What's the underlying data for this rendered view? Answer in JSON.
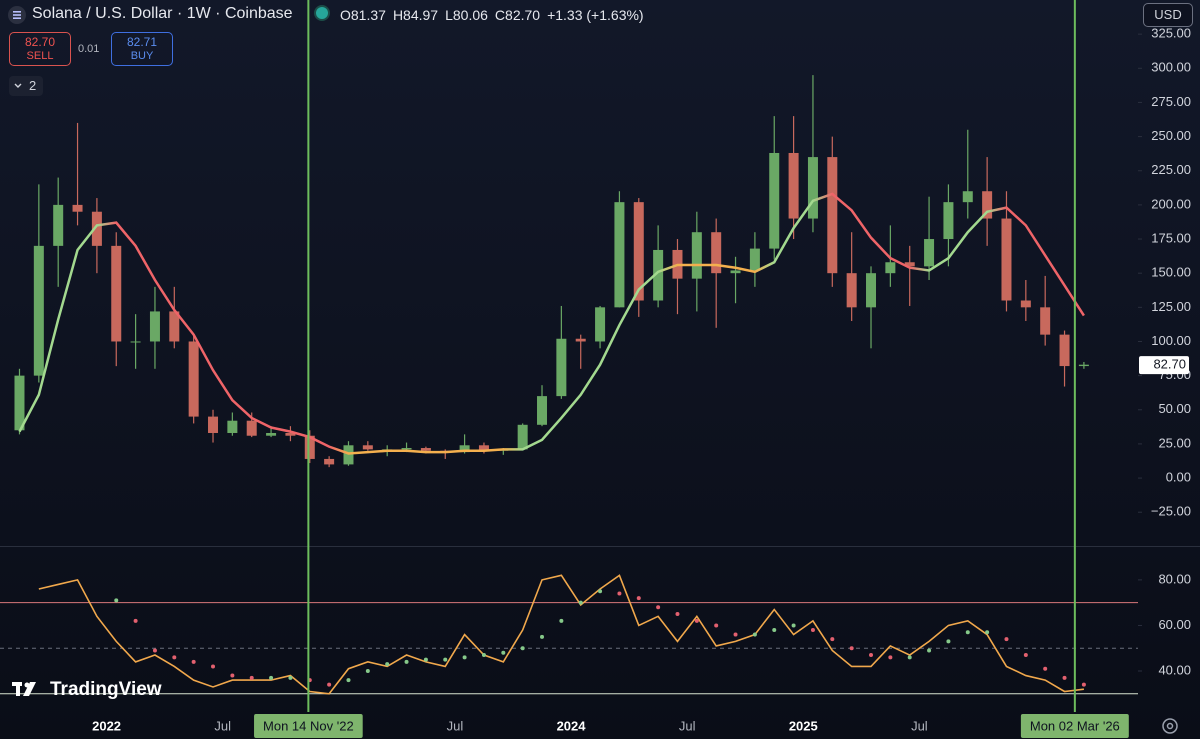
{
  "header": {
    "symbol": "Solana / U.S. Dollar · 1W · Coinbase",
    "ohlc": [
      "O81.37",
      "H84.97",
      "L80.06",
      "C82.70"
    ],
    "change": "+1.33 (+1.63%)",
    "sell": {
      "price": "82.70",
      "label": "SELL"
    },
    "spread": "0.01",
    "buy": {
      "price": "82.71",
      "label": "BUY"
    },
    "indicators": "2",
    "currency": "USD",
    "logo": "TradingView"
  },
  "chart_data": [
    {
      "type": "candlestick",
      "up_color": "#6aa865",
      "down_color": "#c8695d",
      "grid": false,
      "xlim": [
        "2021-07-16",
        "2026-06-10"
      ],
      "ylim": [
        -49,
        350
      ],
      "x": [
        "2021-08",
        "2021-09",
        "2021-10",
        "2021-11",
        "2021-12",
        "2022-01",
        "2022-02",
        "2022-03",
        "2022-04",
        "2022-05",
        "2022-06",
        "2022-07",
        "2022-08",
        "2022-09",
        "2022-10",
        "2022-11",
        "2022-12",
        "2023-01",
        "2023-02",
        "2023-03",
        "2023-04",
        "2023-05",
        "2023-06",
        "2023-07",
        "2023-08",
        "2023-09",
        "2023-10",
        "2023-11",
        "2023-12",
        "2024-01",
        "2024-02",
        "2024-03",
        "2024-04",
        "2024-05",
        "2024-06",
        "2024-07",
        "2024-08",
        "2024-09",
        "2024-10",
        "2024-11",
        "2024-12",
        "2025-01",
        "2025-02",
        "2025-03",
        "2025-04",
        "2025-05",
        "2025-06",
        "2025-07",
        "2025-08",
        "2025-09",
        "2025-10",
        "2025-11",
        "2025-12",
        "2026-01",
        "2026-02",
        "2026-03"
      ],
      "open": [
        35,
        75,
        170,
        200,
        195,
        170,
        100,
        100,
        122,
        100,
        45,
        33,
        42,
        31,
        33,
        31,
        14,
        10,
        24,
        21,
        21,
        22,
        20,
        19,
        24,
        20,
        21,
        39,
        60,
        102,
        100,
        125,
        202,
        130,
        167,
        146,
        180,
        150,
        152,
        168,
        238,
        190,
        235,
        150,
        125,
        150,
        158,
        155,
        175,
        202,
        210,
        190,
        130,
        125,
        105,
        82
      ],
      "high": [
        80,
        215,
        220,
        260,
        205,
        180,
        120,
        140,
        140,
        105,
        50,
        48,
        48,
        38,
        38,
        35,
        16,
        27,
        27,
        24,
        26,
        23,
        21,
        32,
        26,
        22,
        40,
        68,
        126,
        105,
        126,
        210,
        205,
        185,
        175,
        195,
        190,
        162,
        180,
        265,
        265,
        295,
        250,
        180,
        155,
        185,
        170,
        206,
        215,
        255,
        235,
        210,
        145,
        148,
        108,
        85
      ],
      "low": [
        32,
        70,
        140,
        185,
        150,
        82,
        80,
        80,
        95,
        40,
        26,
        31,
        30,
        30,
        27,
        11,
        8,
        9,
        20,
        16,
        19,
        18,
        14,
        18,
        18,
        17,
        21,
        38,
        58,
        80,
        95,
        125,
        118,
        125,
        120,
        122,
        110,
        128,
        140,
        160,
        175,
        180,
        140,
        115,
        95,
        140,
        126,
        145,
        155,
        190,
        170,
        122,
        115,
        97,
        67,
        80
      ],
      "close": [
        75,
        170,
        200,
        195,
        170,
        100,
        100,
        122,
        100,
        45,
        33,
        42,
        31,
        33,
        31,
        14,
        10,
        24,
        21,
        21,
        22,
        20,
        19,
        24,
        20,
        21,
        39,
        60,
        102,
        100,
        125,
        202,
        130,
        167,
        146,
        180,
        150,
        152,
        168,
        238,
        190,
        235,
        150,
        125,
        150,
        158,
        155,
        175,
        202,
        210,
        190,
        130,
        125,
        105,
        82,
        83
      ],
      "ma": {
        "color_up": "#a3d98f",
        "color_flat": "#f4b04e",
        "color_down": "#ef6468",
        "values": [
          34,
          61,
          116,
          167,
          185,
          187,
          170,
          145,
          123,
          105,
          79,
          57,
          44,
          37,
          34,
          30,
          23,
          18,
          19,
          20,
          20,
          19,
          19,
          20,
          20,
          21,
          21,
          28,
          44,
          61,
          83,
          112,
          138,
          151,
          156,
          156,
          156,
          154,
          151,
          158,
          183,
          203,
          208,
          196,
          176,
          161,
          154,
          152,
          161,
          180,
          195,
          198,
          185,
          163,
          141,
          119
        ]
      },
      "yticks": [
        {
          "value": 325,
          "label": "325.00"
        },
        {
          "value": 300,
          "label": "300.00"
        },
        {
          "value": 275,
          "label": "275.00"
        },
        {
          "value": 250,
          "label": "250.00"
        },
        {
          "value": 225,
          "label": "225.00"
        },
        {
          "value": 200,
          "label": "200.00"
        },
        {
          "value": 175,
          "label": "175.00"
        },
        {
          "value": 150,
          "label": "150.00"
        },
        {
          "value": 125,
          "label": "125.00"
        },
        {
          "value": 100,
          "label": "100.00"
        },
        {
          "value": 75,
          "label": "75.00"
        },
        {
          "value": 50,
          "label": "50.00"
        },
        {
          "value": 25,
          "label": "25.00"
        },
        {
          "value": 0,
          "label": "0.00"
        },
        {
          "value": -25,
          "label": "−25.00"
        }
      ],
      "last_price": {
        "value": 82.7,
        "label": "82.70"
      },
      "xticks": [
        {
          "value": "2022-01-01",
          "label": "2022"
        },
        {
          "value": "2022-07-01",
          "label": "Jul"
        },
        {
          "value": "2023-07-01",
          "label": "Jul"
        },
        {
          "value": "2024-01-01",
          "label": "2024"
        },
        {
          "value": "2024-07-01",
          "label": "Jul"
        },
        {
          "value": "2025-01-01",
          "label": "2025"
        },
        {
          "value": "2025-07-01",
          "label": "Jul"
        }
      ],
      "crosshairs": [
        {
          "value": "2022-11-14",
          "label": "Mon 14 Nov '22"
        },
        {
          "value": "2026-03-02",
          "label": "Mon 02 Mar '26"
        }
      ]
    },
    {
      "type": "line",
      "ylim": [
        22,
        94
      ],
      "x": [
        "2021-08",
        "2021-09",
        "2021-10",
        "2021-11",
        "2021-12",
        "2022-01",
        "2022-02",
        "2022-03",
        "2022-04",
        "2022-05",
        "2022-06",
        "2022-07",
        "2022-08",
        "2022-09",
        "2022-10",
        "2022-11",
        "2022-12",
        "2023-01",
        "2023-02",
        "2023-03",
        "2023-04",
        "2023-05",
        "2023-06",
        "2023-07",
        "2023-08",
        "2023-09",
        "2023-10",
        "2023-11",
        "2023-12",
        "2024-01",
        "2024-02",
        "2024-03",
        "2024-04",
        "2024-05",
        "2024-06",
        "2024-07",
        "2024-08",
        "2024-09",
        "2024-10",
        "2024-11",
        "2024-12",
        "2025-01",
        "2025-02",
        "2025-03",
        "2025-04",
        "2025-05",
        "2025-06",
        "2025-07",
        "2025-08",
        "2025-09",
        "2025-10",
        "2025-11",
        "2025-12",
        "2026-01",
        "2026-02",
        "2026-03"
      ],
      "series": [
        {
          "style": "line",
          "color": "#f1a84c",
          "values": [
            null,
            76,
            78,
            80,
            64,
            53,
            44,
            47,
            42,
            36,
            33,
            36,
            36,
            36,
            38,
            31,
            30,
            41,
            44,
            42,
            47,
            44,
            42,
            56,
            47,
            44,
            58,
            80,
            82,
            69,
            76,
            82,
            60,
            64,
            53,
            64,
            51,
            53,
            56,
            67,
            56,
            62,
            49,
            42,
            42,
            51,
            47,
            53,
            60,
            62,
            56,
            42,
            38,
            36,
            31,
            32
          ]
        },
        {
          "style": "dots",
          "color_up": "#86c98a",
          "color_down": "#e3606f",
          "values": [
            null,
            null,
            null,
            null,
            null,
            71,
            62,
            49,
            46,
            44,
            42,
            38,
            37,
            37,
            37,
            36,
            34,
            36,
            40,
            43,
            44,
            45,
            45,
            46,
            47,
            48,
            50,
            55,
            62,
            70,
            75,
            74,
            72,
            68,
            65,
            62,
            60,
            56,
            56,
            58,
            60,
            58,
            54,
            50,
            47,
            46,
            46,
            49,
            53,
            57,
            57,
            54,
            47,
            41,
            37,
            34
          ]
        }
      ],
      "levels": [
        70,
        50,
        30
      ],
      "level_colors": [
        "#d9777a",
        "#6b6f7c",
        "#d8e4cf"
      ],
      "level_styles": [
        "solid",
        "dashed",
        "solid"
      ],
      "yticks": [
        {
          "value": 80,
          "label": "80.00"
        },
        {
          "value": 60,
          "label": "60.00"
        },
        {
          "value": 40,
          "label": "40.00"
        }
      ]
    }
  ]
}
